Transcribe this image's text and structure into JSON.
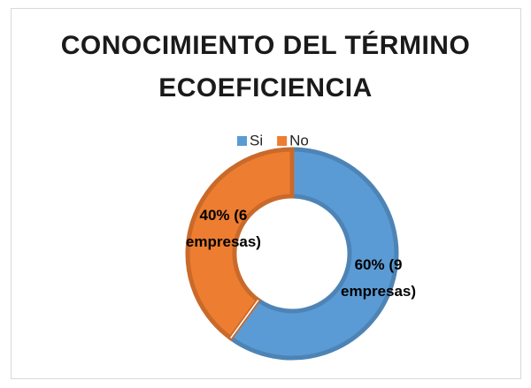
{
  "chart_data": {
    "type": "doughnut",
    "title": "CONOCIMIENTO DEL TÉRMINO ECOEFICIENCIA",
    "categories": [
      "Si",
      "No"
    ],
    "values": [
      60,
      40
    ],
    "value_labels": [
      "60% (9 empresas)",
      "40% (6 empresas)"
    ],
    "colors": [
      "#5b9bd5",
      "#ed7d31"
    ],
    "legend": "top"
  }
}
